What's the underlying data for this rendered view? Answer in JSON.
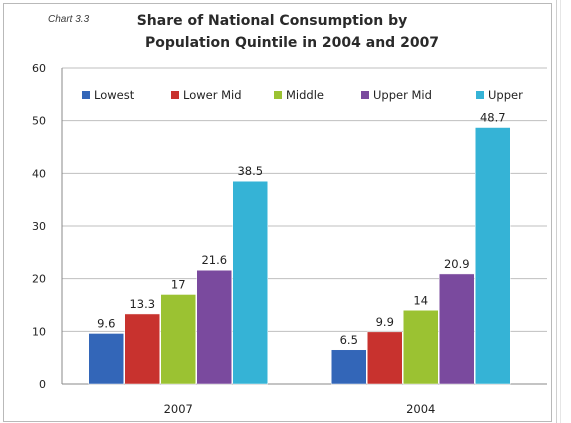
{
  "chart_data": {
    "type": "bar",
    "label": "Chart 3.3",
    "title": [
      "Share of National Consumption by",
      "Population Quintile  in 2004 and 2007"
    ],
    "categories": [
      "2007",
      "2004"
    ],
    "series": [
      {
        "name": "Lowest",
        "color": "#3366b8",
        "values": [
          9.6,
          6.5
        ]
      },
      {
        "name": "Lower Mid",
        "color": "#c8322e",
        "values": [
          13.3,
          9.9
        ]
      },
      {
        "name": "Middle",
        "color": "#9bc232",
        "values": [
          17,
          14
        ]
      },
      {
        "name": "Upper Mid",
        "color": "#7a4a9e",
        "values": [
          21.6,
          20.9
        ]
      },
      {
        "name": "Upper",
        "color": "#35b3d6",
        "values": [
          38.5,
          48.7
        ]
      }
    ],
    "ylim": [
      0,
      60
    ],
    "yticks": [
      0,
      10,
      20,
      30,
      40,
      50,
      60
    ],
    "data_labels": [
      [
        "9.6",
        "13.3",
        "17",
        "21.6",
        "38.5"
      ],
      [
        "6.5",
        "9.9",
        "14",
        "20.9",
        "48.7"
      ]
    ],
    "legend_position": "top",
    "grid": "horizontal"
  }
}
